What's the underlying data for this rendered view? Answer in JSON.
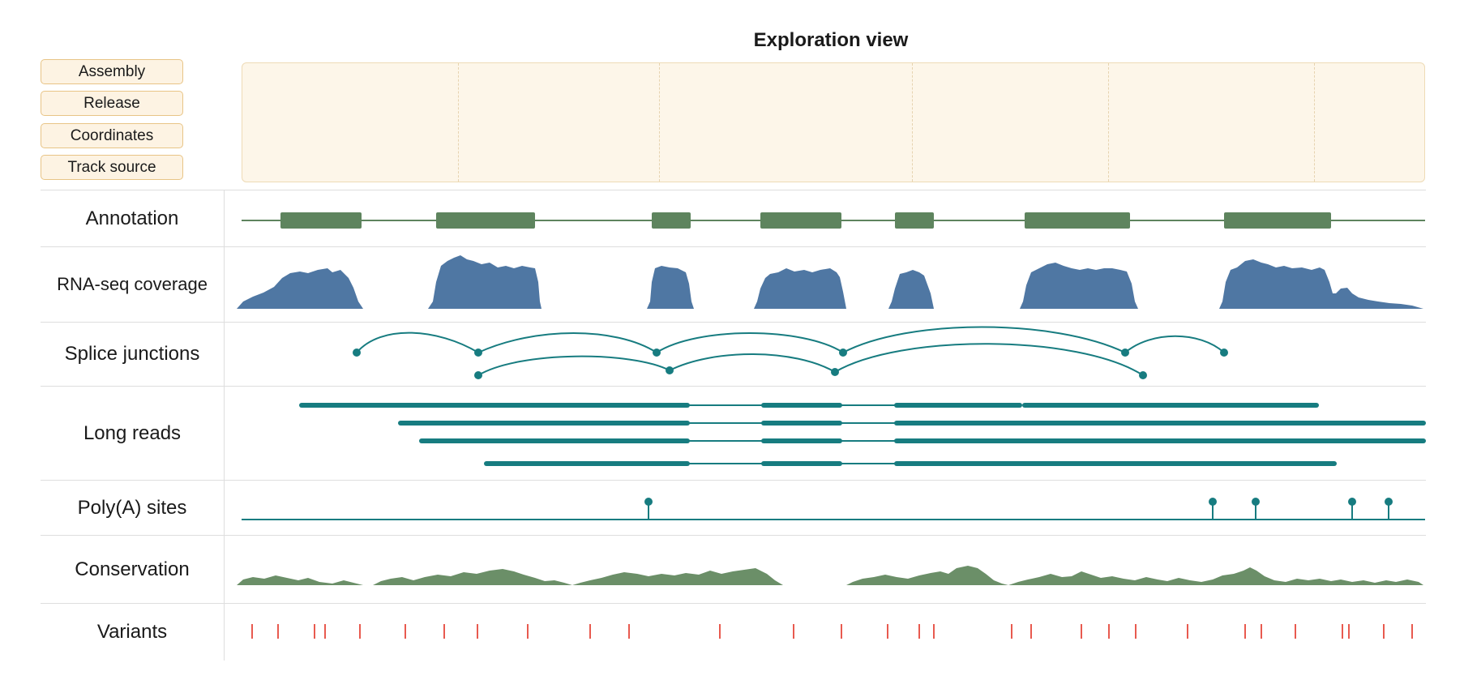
{
  "header": {
    "title": "Exploration view"
  },
  "metadata_buttons": [
    "Assembly",
    "Release",
    "Coordinates",
    "Track source"
  ],
  "tracks": {
    "annotation": "Annotation",
    "rnaseq": "RNA-seq coverage",
    "splice": "Splice junctions",
    "longreads": "Long reads",
    "polya": "Poly(A) sites",
    "conservation": "Conservation",
    "variants": "Variants"
  },
  "colors": {
    "annotation": "#5e845e",
    "coverage": "#4f77a3",
    "teal": "#177c80",
    "conservation": "#6b8f68",
    "variant": "#e85a4f",
    "panel_bg": "#fdf6e9",
    "panel_border": "#eedbb6"
  },
  "icons": {
    "splice_node": "teal-dot",
    "polya_marker": "lollipop-pin",
    "variant_marker": "red-tick"
  }
}
